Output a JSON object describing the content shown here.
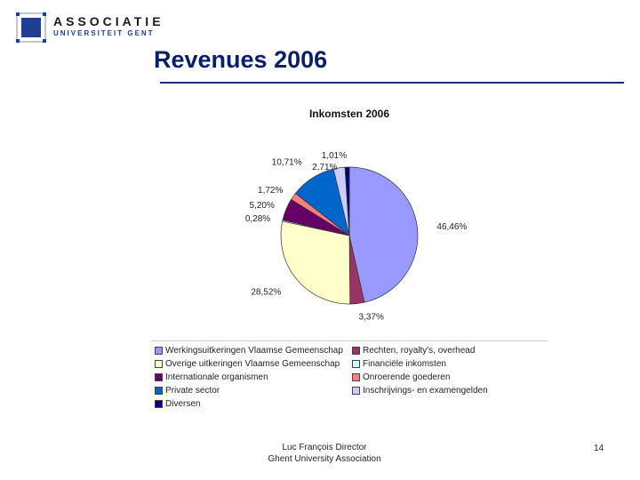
{
  "header": {
    "logo_line1": "ASSOCIATIE",
    "logo_line2": "UNIVERSITEIT GENT"
  },
  "slide": {
    "title": "Revenues 2006"
  },
  "footer": {
    "line1": "Luc François Director",
    "line2": "Ghent University Association",
    "page_number": "14"
  },
  "chart_data": {
    "type": "pie",
    "title": "Inkomsten 2006",
    "legend_position": "bottom",
    "slices": [
      {
        "name": "Werkingsuitkeringen Vlaamse Gemeenschap",
        "value": 46.46,
        "label": "46,46%",
        "color": "#9999ff"
      },
      {
        "name": "Rechten, royalty's, overhead",
        "value": 3.37,
        "label": "3,37%",
        "color": "#993366"
      },
      {
        "name": "Overige uitkeringen Vlaamse Gemeenschap",
        "value": 28.52,
        "label": "28,52%",
        "color": "#ffffcc"
      },
      {
        "name": "Financiële inkomsten",
        "value": 0.28,
        "label": "0,28%",
        "color": "#ccffff"
      },
      {
        "name": "Internationale organismen",
        "value": 5.2,
        "label": "5,20%",
        "color": "#660066"
      },
      {
        "name": "Onroerende goederen",
        "value": 1.72,
        "label": "1,72%",
        "color": "#ff8080"
      },
      {
        "name": "Private sector",
        "value": 10.71,
        "label": "10,71%",
        "color": "#0066cc"
      },
      {
        "name": "Inschrijvings- en examengelden",
        "value": 2.71,
        "label": "2,71%",
        "color": "#ccccff"
      },
      {
        "name": "Diversen",
        "value": 1.01,
        "label": "1,01%",
        "color": "#000080"
      }
    ]
  }
}
